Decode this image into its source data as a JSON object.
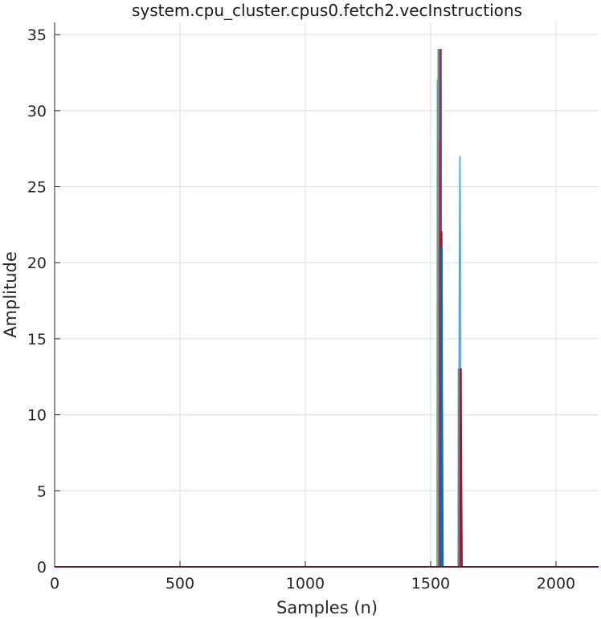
{
  "chart_data": {
    "type": "line",
    "title": "system.cpu_cluster.cpus0.fetch2.vecInstructions",
    "xlabel": "Samples (n)",
    "ylabel": "Amplitude",
    "xlim": [
      0,
      2170
    ],
    "ylim": [
      0,
      35.8
    ],
    "xticks": [
      0,
      500,
      1000,
      1500,
      2000
    ],
    "yticks": [
      0,
      5,
      10,
      15,
      20,
      25,
      30,
      35
    ],
    "grid": true,
    "legend": "none",
    "series": [
      {
        "color": "#0072bd",
        "x": [
          0,
          1527,
          1528,
          1529,
          1530,
          1531,
          1532,
          2170
        ],
        "y": [
          0,
          0,
          32,
          32,
          0,
          0,
          0,
          0
        ]
      },
      {
        "color": "#4dbeee",
        "x": [
          0,
          1529,
          1530,
          1532,
          1533,
          1535,
          2170
        ],
        "y": [
          0,
          0,
          34,
          34,
          0,
          0,
          0
        ]
      },
      {
        "color": "#77ac30",
        "x": [
          0,
          1531,
          1532,
          1534,
          1535,
          1537,
          2170
        ],
        "y": [
          0,
          0,
          34,
          34,
          0,
          0,
          0
        ]
      },
      {
        "color": "#d95319",
        "x": [
          0,
          1534,
          1535,
          1537,
          1538,
          1540,
          2170
        ],
        "y": [
          0,
          0,
          28,
          28,
          0,
          0,
          0
        ]
      },
      {
        "color": "#7e2f8e",
        "x": [
          0,
          1537,
          1538,
          1541,
          1542,
          1544,
          2170
        ],
        "y": [
          0,
          0,
          34,
          34,
          0,
          0,
          0
        ]
      },
      {
        "color": "#a2142f",
        "x": [
          0,
          1540,
          1541,
          1544,
          1545,
          1548,
          2170
        ],
        "y": [
          0,
          0,
          22,
          22,
          0,
          0,
          0
        ]
      },
      {
        "color": "#0072bd",
        "x": [
          0,
          1542,
          1543,
          1545,
          1546,
          1549,
          2170
        ],
        "y": [
          0,
          0,
          21,
          21,
          12,
          0,
          0
        ]
      },
      {
        "color": "#4dbeee",
        "x": [
          0,
          1610,
          1611,
          1614,
          1615,
          1617,
          2170
        ],
        "y": [
          0,
          0,
          13,
          13,
          0,
          0,
          0
        ]
      },
      {
        "color": "#77ac30",
        "x": [
          0,
          1612,
          1613,
          1615,
          1616,
          1618,
          2170
        ],
        "y": [
          0,
          0,
          13,
          13,
          0,
          0,
          0
        ]
      },
      {
        "color": "#7e2f8e",
        "x": [
          0,
          1614,
          1615,
          1617,
          1618,
          1620,
          2170
        ],
        "y": [
          0,
          0,
          17,
          27,
          0,
          0,
          0
        ]
      },
      {
        "color": "#4dbeee",
        "x": [
          0,
          1616,
          1617,
          1619,
          1620,
          1622,
          2170
        ],
        "y": [
          0,
          0,
          27,
          20,
          0,
          0,
          0
        ]
      },
      {
        "color": "#a2142f",
        "x": [
          0,
          1618,
          1619,
          1621,
          1622,
          1625,
          2170
        ],
        "y": [
          0,
          0,
          13,
          13,
          8,
          0,
          0
        ]
      }
    ]
  }
}
